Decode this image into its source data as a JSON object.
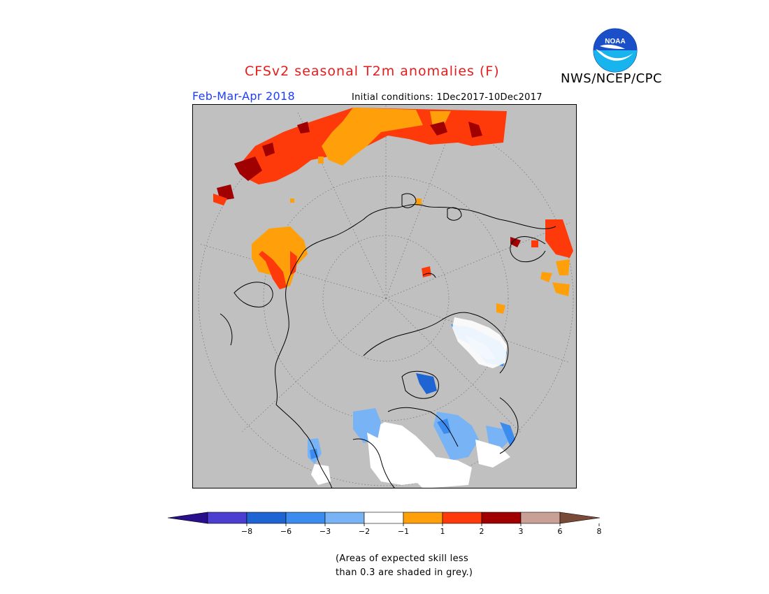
{
  "header": {
    "title": "CFSv2 seasonal T2m anomalies (F)",
    "agency": "NWS/NCEP/CPC",
    "season": "Feb-Mar-Apr 2018",
    "initial_conditions": "Initial conditions: 1Dec2017-10Dec2017"
  },
  "logo": {
    "text": "NOAA",
    "icon": "noaa-logo-icon",
    "colors": {
      "top": "#1a5fd6",
      "bottom": "#0aa6e8",
      "bird": "#ffffff"
    }
  },
  "map": {
    "projection": "polar-stereographic",
    "background": "#c0c0c0",
    "legend_colors": {
      "below_-8": "#2a0f8c",
      "-8_to_-6": "#4a3fd0",
      "-6_to_-3": "#1e64d2",
      "-3_to_-2": "#3c8cf0",
      "-2_to_-1": "#78b4f5",
      "-1_to_1": "#ffffff",
      "1_to_2": "#ffa00a",
      "2_to_3": "#ff3a0a",
      "3_to_6": "#a00000",
      "6_to_8": "#c8a096",
      "above_8": "#7a4a38"
    }
  },
  "colorbar": {
    "tick_labels": [
      "-8",
      "-6",
      "-3",
      "-2",
      "-1",
      "1",
      "2",
      "3",
      "6",
      "8"
    ],
    "colors": [
      "#2a0f8c",
      "#4a3fd0",
      "#1e64d2",
      "#3c8cf0",
      "#78b4f5",
      "#ffffff",
      "#ffa00a",
      "#ff3a0a",
      "#a00000",
      "#c8a096",
      "#7a4a38"
    ]
  },
  "footnote": {
    "line1": "(Areas of expected skill less",
    "line2": "than 0.3 are shaded in grey.)"
  }
}
